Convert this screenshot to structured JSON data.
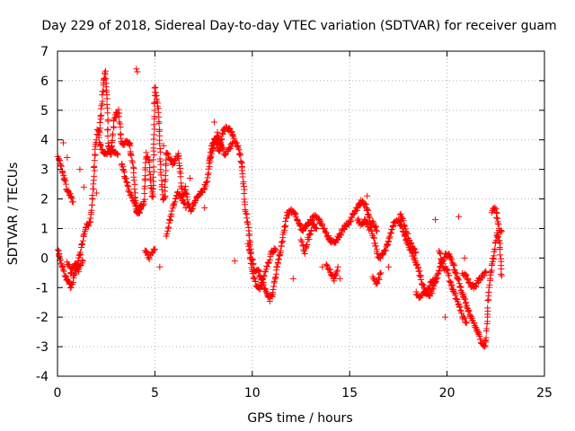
{
  "chart_data": {
    "type": "scatter",
    "title": "Day 229 of 2018, Sidereal Day-to-day VTEC variation (SDTVAR) for receiver guam",
    "xlabel": "GPS time / hours",
    "ylabel": "SDTVAR / TECUs",
    "xlim": [
      0,
      25
    ],
    "ylim": [
      -4,
      7
    ],
    "xticks": [
      0,
      5,
      10,
      15,
      20,
      25
    ],
    "yticks": [
      -4,
      -3,
      -2,
      -1,
      0,
      1,
      2,
      3,
      4,
      5,
      6,
      7
    ],
    "grid": true,
    "marker": "+",
    "color": "#ff0000",
    "series": [
      {
        "name": "SDTVAR",
        "trace": [
          [
            0.0,
            0.5
          ],
          [
            0.1,
            0.0
          ],
          [
            0.2,
            -0.2
          ],
          [
            0.3,
            -0.4
          ],
          [
            0.4,
            -0.6
          ],
          [
            0.55,
            -0.8
          ],
          [
            0.7,
            -1.0
          ],
          [
            0.85,
            -0.6
          ],
          [
            1.0,
            -0.2
          ],
          [
            1.15,
            0.1
          ],
          [
            1.3,
            0.6
          ],
          [
            1.5,
            1.1
          ],
          [
            1.7,
            1.2
          ],
          [
            1.85,
            2.5
          ],
          [
            1.95,
            3.8
          ],
          [
            2.05,
            4.3
          ],
          [
            2.15,
            4.2
          ],
          [
            2.25,
            5.0
          ],
          [
            2.35,
            5.8
          ],
          [
            2.45,
            6.3
          ],
          [
            2.55,
            5.5
          ],
          [
            2.6,
            3.8
          ],
          [
            2.75,
            3.5
          ],
          [
            2.9,
            4.7
          ],
          [
            3.05,
            4.9
          ],
          [
            3.15,
            5.0
          ],
          [
            3.25,
            4.0
          ],
          [
            3.4,
            3.8
          ],
          [
            3.55,
            4.0
          ],
          [
            3.7,
            3.9
          ],
          [
            3.8,
            3.4
          ],
          [
            3.9,
            3.0
          ],
          [
            4.0,
            2.0
          ],
          [
            4.1,
            1.6
          ],
          [
            4.2,
            1.5
          ],
          [
            4.35,
            1.8
          ],
          [
            4.45,
            1.9
          ],
          [
            4.55,
            3.5
          ],
          [
            4.7,
            3.3
          ],
          [
            4.8,
            2.4
          ],
          [
            4.9,
            2.0
          ],
          [
            5.0,
            5.8
          ],
          [
            5.1,
            5.4
          ],
          [
            5.2,
            4.8
          ],
          [
            5.3,
            3.0
          ],
          [
            5.4,
            2.0
          ],
          [
            5.5,
            2.0
          ],
          [
            5.6,
            3.6
          ],
          [
            5.75,
            3.4
          ],
          [
            5.9,
            3.2
          ],
          [
            6.05,
            3.3
          ],
          [
            6.2,
            3.5
          ],
          [
            6.35,
            2.5
          ],
          [
            6.45,
            2.0
          ],
          [
            6.55,
            2.4
          ],
          [
            6.7,
            1.8
          ],
          [
            6.9,
            1.6
          ],
          [
            7.1,
            2.0
          ],
          [
            7.3,
            2.2
          ],
          [
            7.5,
            2.3
          ],
          [
            7.7,
            2.6
          ],
          [
            7.9,
            3.8
          ],
          [
            8.1,
            4.0
          ],
          [
            8.3,
            3.6
          ],
          [
            8.5,
            4.3
          ],
          [
            8.7,
            4.4
          ],
          [
            8.9,
            4.3
          ],
          [
            9.1,
            4.0
          ],
          [
            9.3,
            3.7
          ],
          [
            9.45,
            3.2
          ],
          [
            9.55,
            2.5
          ],
          [
            9.65,
            1.7
          ],
          [
            9.8,
            1.0
          ],
          [
            9.95,
            0.1
          ],
          [
            10.1,
            -0.4
          ],
          [
            10.3,
            -0.4
          ],
          [
            10.5,
            -0.8
          ],
          [
            10.7,
            -1.1
          ],
          [
            10.9,
            -1.4
          ],
          [
            11.05,
            -1.2
          ],
          [
            11.2,
            -0.6
          ],
          [
            11.35,
            0.0
          ],
          [
            11.5,
            0.4
          ],
          [
            11.65,
            1.0
          ],
          [
            11.8,
            1.5
          ],
          [
            12.0,
            1.6
          ],
          [
            12.2,
            1.5
          ],
          [
            12.4,
            1.2
          ],
          [
            12.6,
            0.9
          ],
          [
            12.8,
            1.1
          ],
          [
            13.0,
            1.3
          ],
          [
            13.2,
            1.4
          ],
          [
            13.4,
            1.3
          ],
          [
            13.6,
            1.1
          ],
          [
            13.8,
            0.8
          ],
          [
            14.0,
            0.6
          ],
          [
            14.2,
            0.5
          ],
          [
            14.4,
            0.7
          ],
          [
            14.6,
            0.9
          ],
          [
            14.8,
            1.1
          ],
          [
            15.0,
            1.2
          ],
          [
            15.2,
            1.5
          ],
          [
            15.4,
            1.7
          ],
          [
            15.6,
            1.9
          ],
          [
            15.8,
            1.8
          ],
          [
            16.0,
            1.4
          ],
          [
            16.15,
            0.9
          ],
          [
            16.3,
            0.5
          ],
          [
            16.5,
            0.0
          ],
          [
            16.7,
            0.1
          ],
          [
            16.9,
            0.4
          ],
          [
            17.1,
            0.8
          ],
          [
            17.3,
            1.2
          ],
          [
            17.5,
            1.3
          ],
          [
            17.7,
            1.0
          ],
          [
            17.9,
            0.6
          ],
          [
            18.1,
            0.3
          ],
          [
            18.3,
            0.0
          ],
          [
            18.5,
            -0.3
          ],
          [
            18.7,
            -0.8
          ],
          [
            18.9,
            -1.2
          ],
          [
            19.1,
            -1.3
          ],
          [
            19.3,
            -1.0
          ],
          [
            19.5,
            -0.6
          ],
          [
            19.7,
            -0.2
          ],
          [
            19.9,
            0.1
          ],
          [
            20.1,
            0.1
          ],
          [
            20.3,
            -0.2
          ],
          [
            20.5,
            -0.6
          ],
          [
            20.7,
            -1.0
          ],
          [
            20.9,
            -1.4
          ],
          [
            21.1,
            -1.8
          ],
          [
            21.3,
            -2.1
          ],
          [
            21.5,
            -2.4
          ],
          [
            21.7,
            -2.7
          ],
          [
            21.9,
            -3.0
          ],
          [
            22.0,
            -2.9
          ],
          [
            22.1,
            -1.5
          ],
          [
            22.25,
            -0.5
          ],
          [
            22.4,
            0.1
          ],
          [
            22.55,
            0.8
          ],
          [
            22.7,
            0.6
          ],
          [
            22.8,
            -0.6
          ]
        ],
        "extra_segments": [
          [
            [
              0.0,
              3.5
            ],
            [
              0.15,
              3.2
            ],
            [
              0.3,
              2.8
            ],
            [
              0.45,
              2.4
            ],
            [
              0.6,
              2.2
            ],
            [
              0.8,
              1.9
            ]
          ],
          [
            [
              0.5,
              -0.1
            ],
            [
              0.7,
              -0.5
            ],
            [
              0.9,
              -0.2
            ],
            [
              1.1,
              -0.4
            ],
            [
              1.3,
              -0.1
            ]
          ],
          [
            [
              2.1,
              4.1
            ],
            [
              2.3,
              3.6
            ],
            [
              2.5,
              3.5
            ],
            [
              2.7,
              3.7
            ],
            [
              2.9,
              3.6
            ],
            [
              3.1,
              3.5
            ]
          ],
          [
            [
              3.3,
              3.2
            ],
            [
              3.5,
              2.7
            ],
            [
              3.7,
              2.2
            ],
            [
              3.9,
              1.9
            ],
            [
              4.1,
              1.5
            ],
            [
              4.3,
              1.8
            ]
          ],
          [
            [
              4.5,
              0.3
            ],
            [
              4.7,
              0.0
            ],
            [
              4.9,
              0.2
            ],
            [
              5.0,
              0.3
            ]
          ],
          [
            [
              5.6,
              0.8
            ],
            [
              5.8,
              1.4
            ],
            [
              6.0,
              1.9
            ],
            [
              6.2,
              2.2
            ],
            [
              6.4,
              2.0
            ],
            [
              6.6,
              1.7
            ]
          ],
          [
            [
              7.8,
              3.3
            ],
            [
              8.0,
              3.7
            ],
            [
              8.2,
              4.2
            ],
            [
              8.4,
              3.8
            ],
            [
              8.6,
              3.5
            ],
            [
              8.8,
              3.7
            ],
            [
              9.0,
              3.9
            ]
          ],
          [
            [
              9.8,
              0.5
            ],
            [
              10.0,
              -0.5
            ],
            [
              10.2,
              -0.9
            ],
            [
              10.4,
              -1.0
            ],
            [
              10.6,
              -0.6
            ],
            [
              10.8,
              -0.2
            ],
            [
              11.0,
              0.2
            ],
            [
              11.2,
              0.3
            ]
          ],
          [
            [
              12.5,
              0.6
            ],
            [
              12.7,
              0.2
            ],
            [
              12.9,
              0.7
            ],
            [
              13.1,
              1.1
            ],
            [
              13.3,
              1.0
            ]
          ],
          [
            [
              13.8,
              -0.2
            ],
            [
              14.0,
              -0.4
            ],
            [
              14.2,
              -0.7
            ],
            [
              14.4,
              -0.3
            ]
          ],
          [
            [
              15.4,
              1.3
            ],
            [
              15.6,
              1.1
            ],
            [
              15.8,
              1.3
            ],
            [
              16.0,
              1.0
            ],
            [
              16.2,
              1.2
            ],
            [
              16.4,
              0.9
            ]
          ],
          [
            [
              16.2,
              -0.7
            ],
            [
              16.4,
              -0.9
            ],
            [
              16.6,
              -0.5
            ]
          ],
          [
            [
              17.6,
              1.5
            ],
            [
              17.8,
              1.1
            ],
            [
              18.0,
              0.7
            ],
            [
              18.2,
              0.4
            ],
            [
              18.4,
              0.2
            ]
          ],
          [
            [
              18.4,
              -1.2
            ],
            [
              18.6,
              -1.3
            ],
            [
              18.8,
              -1.2
            ],
            [
              19.0,
              -1.1
            ],
            [
              19.2,
              -0.8
            ],
            [
              19.4,
              -0.7
            ]
          ],
          [
            [
              19.6,
              0.2
            ],
            [
              19.8,
              -0.3
            ],
            [
              20.0,
              -0.4
            ],
            [
              20.2,
              -0.9
            ],
            [
              20.4,
              -1.2
            ],
            [
              20.6,
              -1.6
            ],
            [
              20.8,
              -2.0
            ],
            [
              21.0,
              -2.2
            ]
          ],
          [
            [
              20.8,
              -0.5
            ],
            [
              21.0,
              -0.6
            ],
            [
              21.2,
              -0.9
            ],
            [
              21.4,
              -1.0
            ],
            [
              21.6,
              -0.8
            ],
            [
              21.8,
              -0.6
            ],
            [
              22.0,
              -0.5
            ]
          ],
          [
            [
              22.3,
              1.6
            ],
            [
              22.5,
              1.7
            ],
            [
              22.65,
              1.0
            ],
            [
              22.8,
              0.9
            ]
          ]
        ],
        "isolated": [
          [
            0.3,
            3.9
          ],
          [
            0.5,
            3.4
          ],
          [
            1.15,
            3.0
          ],
          [
            1.35,
            2.4
          ],
          [
            2.0,
            2.2
          ],
          [
            4.05,
            6.4
          ],
          [
            4.1,
            6.3
          ],
          [
            5.25,
            -0.3
          ],
          [
            5.45,
            3.8
          ],
          [
            6.8,
            2.7
          ],
          [
            7.55,
            1.7
          ],
          [
            8.05,
            4.6
          ],
          [
            9.1,
            -0.1
          ],
          [
            10.5,
            -0.9
          ],
          [
            12.1,
            -0.7
          ],
          [
            13.6,
            -0.3
          ],
          [
            14.5,
            -0.7
          ],
          [
            15.9,
            2.1
          ],
          [
            17.0,
            -0.3
          ],
          [
            19.4,
            1.3
          ],
          [
            19.9,
            -2.0
          ],
          [
            20.6,
            1.4
          ],
          [
            20.9,
            0.0
          ],
          [
            21.95,
            -2.8
          ]
        ]
      }
    ]
  }
}
